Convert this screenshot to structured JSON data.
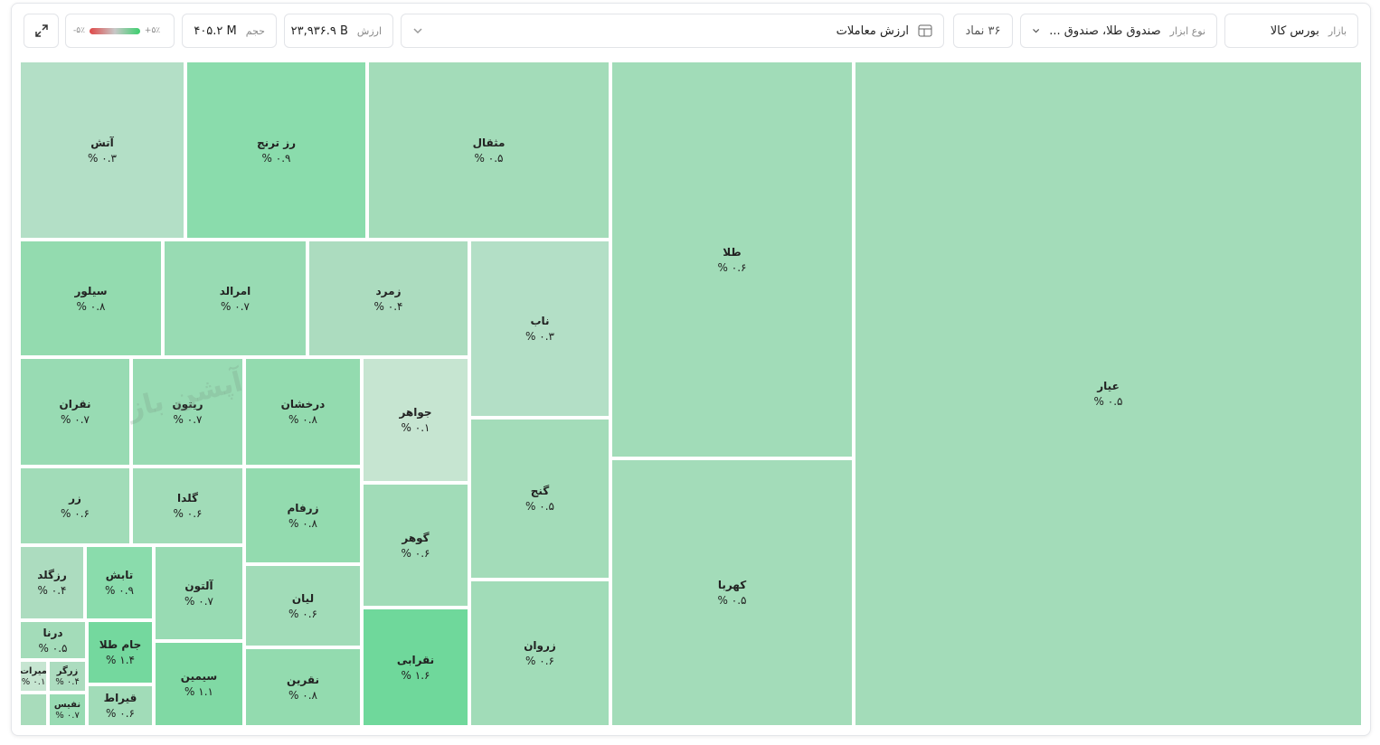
{
  "filters": {
    "market_label": "بازار",
    "market": "بورس کالا",
    "instrument_label": "نوع ابزار",
    "instrument": "صندوق طلا، صندوق ...",
    "symbol_count": "۳۶ نماد",
    "metric": "ارزش معاملات",
    "value_label": "ارزش",
    "value": "۲۳,۹۳۶.۹ B",
    "volume_label": "حجم",
    "volume": "۴۰۵.۲ M",
    "legend_min": "-۵٪",
    "legend_max": "+۵٪"
  },
  "watermark": "آپشن باز",
  "tiles": [
    {
      "name": "عیار",
      "change": "۰.۵ %",
      "color": "#a3dcb9"
    },
    {
      "name": "طلا",
      "change": "۰.۶ %",
      "color": "#a1dcb8"
    },
    {
      "name": "کهربا",
      "change": "۰.۵ %",
      "color": "#a3dcb9"
    },
    {
      "name": "مثقال",
      "change": "۰.۵ %",
      "color": "#a3dcb9"
    },
    {
      "name": "رز ترنج",
      "change": "۰.۹ %",
      "color": "#8adcac"
    },
    {
      "name": "آتش",
      "change": "۰.۳ %",
      "color": "#b3dfc6"
    },
    {
      "name": "ناب",
      "change": "۰.۳ %",
      "color": "#b3dfc6"
    },
    {
      "name": "گنج",
      "change": "۰.۵ %",
      "color": "#a3dcb9"
    },
    {
      "name": "زروان",
      "change": "۰.۶ %",
      "color": "#a1dcb8"
    },
    {
      "name": "زمرد",
      "change": "۰.۴ %",
      "color": "#acdcbf"
    },
    {
      "name": "امرالد",
      "change": "۰.۷ %",
      "color": "#98dbb3"
    },
    {
      "name": "سیلور",
      "change": "۰.۸ %",
      "color": "#93dbaf"
    },
    {
      "name": "جواهر",
      "change": "۰.۱ %",
      "color": "#c6e5d1"
    },
    {
      "name": "گوهر",
      "change": "۰.۶ %",
      "color": "#a1dcb8"
    },
    {
      "name": "نقرابی",
      "change": "۱.۶ %",
      "color": "#6fd89b"
    },
    {
      "name": "درخشان",
      "change": "۰.۸ %",
      "color": "#93dbaf"
    },
    {
      "name": "زرفام",
      "change": "۰.۸ %",
      "color": "#93dbaf"
    },
    {
      "name": "لیان",
      "change": "۰.۶ %",
      "color": "#a1dcb8"
    },
    {
      "name": "نقرین",
      "change": "۰.۸ %",
      "color": "#93dbaf"
    },
    {
      "name": "ریتون",
      "change": "۰.۷ %",
      "color": "#98dbb3"
    },
    {
      "name": "نقران",
      "change": "۰.۷ %",
      "color": "#98dbb3"
    },
    {
      "name": "گلدا",
      "change": "۰.۶ %",
      "color": "#a1dcb8"
    },
    {
      "name": "زر",
      "change": "۰.۶ %",
      "color": "#a1dcb8"
    },
    {
      "name": "آلتون",
      "change": "۰.۷ %",
      "color": "#98dbb3"
    },
    {
      "name": "سیمین",
      "change": "۱.۱ %",
      "color": "#80d9a4"
    },
    {
      "name": "تابش",
      "change": "۰.۹ %",
      "color": "#8adcac"
    },
    {
      "name": "رزگلد",
      "change": "۰.۴ %",
      "color": "#acdcbf"
    },
    {
      "name": "جام طلا",
      "change": "۱.۴ %",
      "color": "#74d89e"
    },
    {
      "name": "قیراط",
      "change": "۰.۶ %",
      "color": "#a1dcb8"
    },
    {
      "name": "درنا",
      "change": "۰.۵ %",
      "color": "#a3dcb9"
    },
    {
      "name": "زرگر",
      "change": "۰.۴ %",
      "color": "#acdcbf"
    },
    {
      "name": "نفیس",
      "change": "۰.۷ %",
      "color": "#98dbb3"
    },
    {
      "name": "میرات",
      "change": "۰.۱ %",
      "color": "#c6e5d1"
    }
  ]
}
